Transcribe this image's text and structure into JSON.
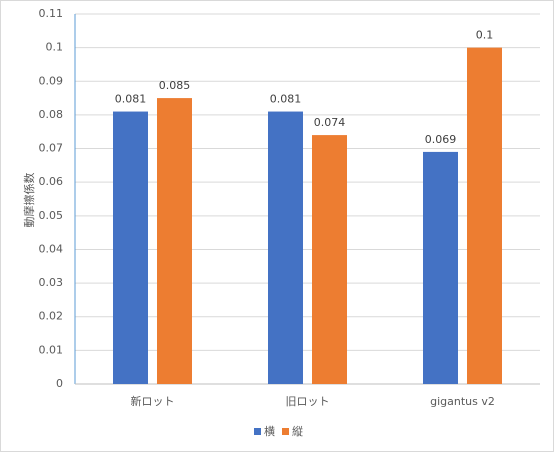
{
  "chart_data": {
    "type": "bar",
    "y_label": "動摩擦係数",
    "categories": [
      "新ロット",
      "旧ロット",
      "gigantus v2"
    ],
    "series": [
      {
        "name": "横",
        "color": "#4472c4",
        "values": [
          0.081,
          0.081,
          0.069
        ]
      },
      {
        "name": "縦",
        "color": "#ed7d31",
        "values": [
          0.085,
          0.074,
          0.1
        ]
      }
    ],
    "ylim": [
      0,
      0.11
    ],
    "yticks": [
      0,
      0.01,
      0.02,
      0.03,
      0.04,
      0.05,
      0.06,
      0.07,
      0.08,
      0.09,
      0.1,
      0.11
    ],
    "grid": true,
    "legend": "bottom"
  }
}
